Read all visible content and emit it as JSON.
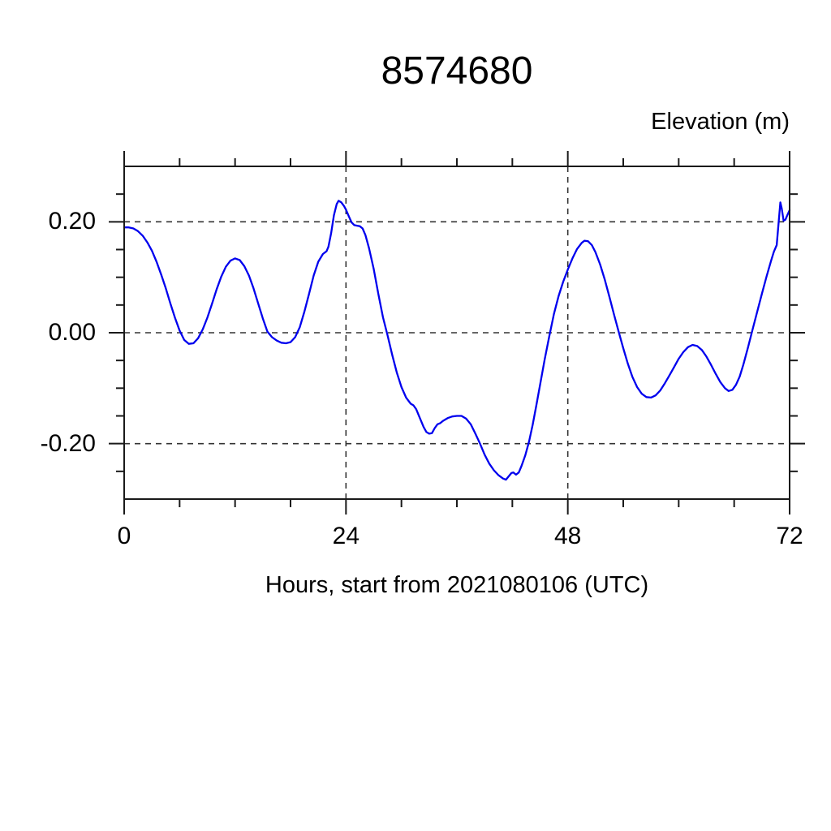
{
  "figure": {
    "title": "8574680",
    "y_axis_title": "Elevation (m)",
    "x_axis_title": "Hours, start from 2021080106 (UTC)"
  },
  "chart_data": {
    "type": "line",
    "title": "8574680",
    "xlabel": "Hours, start from 2021080106 (UTC)",
    "ylabel": "Elevation (m)",
    "xlim": [
      0,
      72
    ],
    "ylim": [
      -0.3,
      0.3
    ],
    "x_major_ticks": [
      0,
      24,
      48,
      72
    ],
    "x_tick_labels": [
      "0",
      "24",
      "48",
      "72"
    ],
    "x_minor_tick_interval": 6,
    "y_major_ticks": [
      -0.2,
      0.0,
      0.2
    ],
    "y_tick_labels": [
      "-0.20",
      "0.00",
      "0.20"
    ],
    "y_minor_tick_interval": 0.05,
    "grid": {
      "x_lines": [
        24,
        48
      ],
      "y_lines": [
        -0.2,
        0.0,
        0.2
      ],
      "style": "dashed",
      "color": "#333333"
    },
    "frame_color": "#1a1a1a",
    "line_color": "#0000ee",
    "series": [
      {
        "name": "elevation",
        "points": [
          [
            0,
            0.19
          ],
          [
            0.5,
            0.19
          ],
          [
            1,
            0.188
          ],
          [
            1.5,
            0.183
          ],
          [
            2,
            0.175
          ],
          [
            2.5,
            0.163
          ],
          [
            3,
            0.148
          ],
          [
            3.5,
            0.128
          ],
          [
            4,
            0.105
          ],
          [
            4.5,
            0.08
          ],
          [
            5,
            0.053
          ],
          [
            5.5,
            0.027
          ],
          [
            6,
            0.004
          ],
          [
            6.5,
            -0.013
          ],
          [
            7,
            -0.02
          ],
          [
            7.5,
            -0.019
          ],
          [
            8,
            -0.01
          ],
          [
            8.5,
            0.006
          ],
          [
            9,
            0.027
          ],
          [
            9.5,
            0.052
          ],
          [
            10,
            0.078
          ],
          [
            10.5,
            0.101
          ],
          [
            11,
            0.119
          ],
          [
            11.5,
            0.13
          ],
          [
            12,
            0.134
          ],
          [
            12.5,
            0.131
          ],
          [
            13,
            0.12
          ],
          [
            13.5,
            0.103
          ],
          [
            14,
            0.08
          ],
          [
            14.5,
            0.053
          ],
          [
            15,
            0.026
          ],
          [
            15.5,
            0.002
          ],
          [
            16,
            -0.008
          ],
          [
            16.5,
            -0.014
          ],
          [
            17,
            -0.018
          ],
          [
            17.5,
            -0.019
          ],
          [
            18,
            -0.017
          ],
          [
            18.5,
            -0.008
          ],
          [
            19,
            0.01
          ],
          [
            19.5,
            0.038
          ],
          [
            20,
            0.07
          ],
          [
            20.5,
            0.103
          ],
          [
            21,
            0.128
          ],
          [
            21.5,
            0.142
          ],
          [
            21.9,
            0.147
          ],
          [
            22.1,
            0.155
          ],
          [
            22.4,
            0.18
          ],
          [
            22.7,
            0.212
          ],
          [
            23,
            0.232
          ],
          [
            23.2,
            0.238
          ],
          [
            23.5,
            0.235
          ],
          [
            23.8,
            0.228
          ],
          [
            24,
            0.222
          ],
          [
            24.3,
            0.21
          ],
          [
            24.6,
            0.199
          ],
          [
            24.9,
            0.194
          ],
          [
            25.2,
            0.193
          ],
          [
            25.5,
            0.192
          ],
          [
            25.8,
            0.188
          ],
          [
            26.1,
            0.176
          ],
          [
            26.5,
            0.152
          ],
          [
            27,
            0.115
          ],
          [
            27.5,
            0.07
          ],
          [
            28,
            0.028
          ],
          [
            28.5,
            -0.005
          ],
          [
            29,
            -0.04
          ],
          [
            29.5,
            -0.072
          ],
          [
            30,
            -0.098
          ],
          [
            30.5,
            -0.117
          ],
          [
            31,
            -0.128
          ],
          [
            31.3,
            -0.131
          ],
          [
            31.6,
            -0.138
          ],
          [
            32,
            -0.154
          ],
          [
            32.4,
            -0.17
          ],
          [
            32.7,
            -0.179
          ],
          [
            33,
            -0.182
          ],
          [
            33.3,
            -0.181
          ],
          [
            33.6,
            -0.172
          ],
          [
            33.9,
            -0.165
          ],
          [
            34.2,
            -0.163
          ],
          [
            34.5,
            -0.159
          ],
          [
            35,
            -0.154
          ],
          [
            35.5,
            -0.151
          ],
          [
            36,
            -0.15
          ],
          [
            36.5,
            -0.15
          ],
          [
            37,
            -0.155
          ],
          [
            37.5,
            -0.165
          ],
          [
            38,
            -0.182
          ],
          [
            38.5,
            -0.2
          ],
          [
            39,
            -0.22
          ],
          [
            39.5,
            -0.236
          ],
          [
            40,
            -0.248
          ],
          [
            40.5,
            -0.257
          ],
          [
            41,
            -0.263
          ],
          [
            41.3,
            -0.265
          ],
          [
            41.6,
            -0.259
          ],
          [
            41.9,
            -0.253
          ],
          [
            42.1,
            -0.252
          ],
          [
            42.4,
            -0.256
          ],
          [
            42.7,
            -0.252
          ],
          [
            43,
            -0.24
          ],
          [
            43.4,
            -0.221
          ],
          [
            43.8,
            -0.197
          ],
          [
            44.2,
            -0.166
          ],
          [
            44.6,
            -0.131
          ],
          [
            45,
            -0.094
          ],
          [
            45.5,
            -0.048
          ],
          [
            46,
            -0.006
          ],
          [
            46.5,
            0.034
          ],
          [
            47,
            0.066
          ],
          [
            47.5,
            0.092
          ],
          [
            48,
            0.114
          ],
          [
            48.5,
            0.134
          ],
          [
            49,
            0.151
          ],
          [
            49.5,
            0.162
          ],
          [
            49.8,
            0.166
          ],
          [
            50.2,
            0.165
          ],
          [
            50.6,
            0.158
          ],
          [
            51,
            0.145
          ],
          [
            51.5,
            0.123
          ],
          [
            52,
            0.096
          ],
          [
            52.5,
            0.065
          ],
          [
            53,
            0.033
          ],
          [
            53.5,
            0.002
          ],
          [
            54,
            -0.028
          ],
          [
            54.5,
            -0.056
          ],
          [
            55,
            -0.08
          ],
          [
            55.5,
            -0.098
          ],
          [
            56,
            -0.11
          ],
          [
            56.5,
            -0.116
          ],
          [
            57,
            -0.117
          ],
          [
            57.5,
            -0.113
          ],
          [
            58,
            -0.104
          ],
          [
            58.5,
            -0.091
          ],
          [
            59,
            -0.077
          ],
          [
            59.5,
            -0.062
          ],
          [
            60,
            -0.047
          ],
          [
            60.5,
            -0.035
          ],
          [
            61,
            -0.026
          ],
          [
            61.5,
            -0.022
          ],
          [
            62,
            -0.024
          ],
          [
            62.5,
            -0.031
          ],
          [
            63,
            -0.043
          ],
          [
            63.5,
            -0.058
          ],
          [
            64,
            -0.074
          ],
          [
            64.5,
            -0.089
          ],
          [
            65,
            -0.1
          ],
          [
            65.4,
            -0.105
          ],
          [
            65.8,
            -0.103
          ],
          [
            66.2,
            -0.094
          ],
          [
            66.6,
            -0.079
          ],
          [
            67,
            -0.057
          ],
          [
            67.5,
            -0.026
          ],
          [
            68,
            0.006
          ],
          [
            68.5,
            0.038
          ],
          [
            69,
            0.07
          ],
          [
            69.5,
            0.101
          ],
          [
            70,
            0.13
          ],
          [
            70.3,
            0.146
          ],
          [
            70.6,
            0.158
          ],
          [
            70.8,
            0.196
          ],
          [
            71,
            0.235
          ],
          [
            71.15,
            0.224
          ],
          [
            71.35,
            0.202
          ],
          [
            71.55,
            0.204
          ],
          [
            71.75,
            0.212
          ],
          [
            72,
            0.221
          ]
        ]
      }
    ]
  }
}
